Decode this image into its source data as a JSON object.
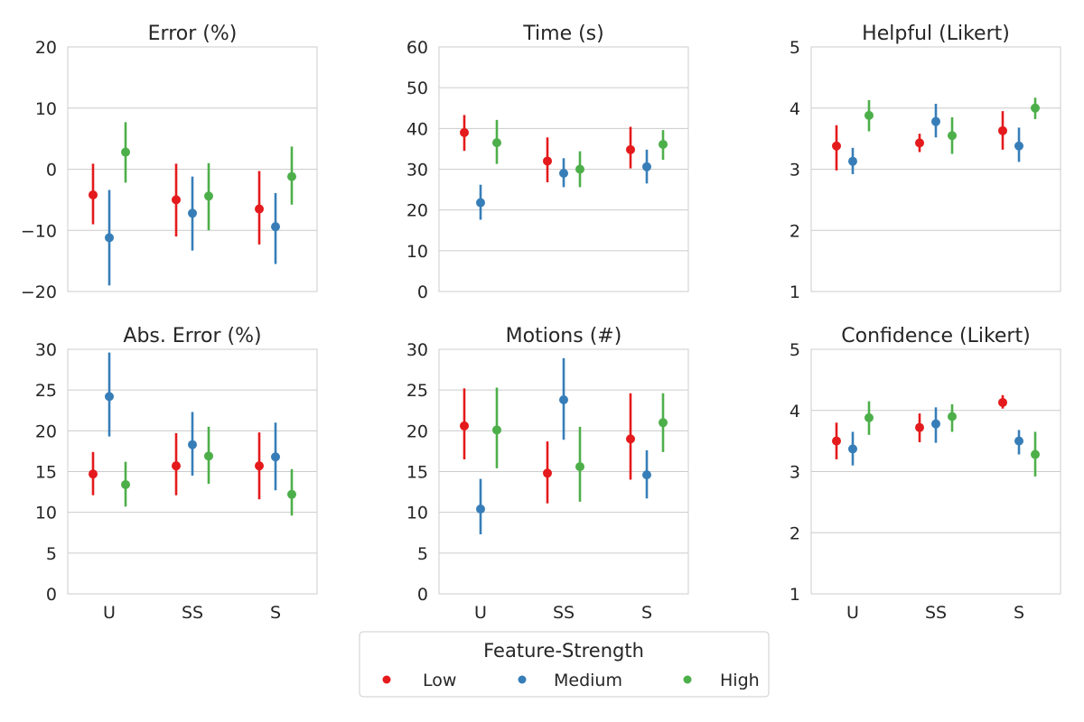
{
  "chart_data": [
    {
      "type": "pointplot",
      "title": "Error (%)",
      "categories": [
        "U",
        "SS",
        "S"
      ],
      "ylim": [
        -20,
        20
      ],
      "yticks": [
        -20,
        -10,
        0,
        10,
        20
      ],
      "ytick_labels": [
        "−20",
        "−10",
        "0",
        "10",
        "20"
      ],
      "show_xticks": false,
      "series": [
        {
          "name": "Low",
          "values": [
            -4.2,
            -5.0,
            -6.5
          ],
          "ci_low": [
            -9.0,
            -11.0,
            -12.3
          ],
          "ci_high": [
            0.9,
            0.9,
            -0.3
          ]
        },
        {
          "name": "Medium",
          "values": [
            -11.2,
            -7.2,
            -9.4
          ],
          "ci_low": [
            -19.0,
            -13.3,
            -15.5
          ],
          "ci_high": [
            -3.4,
            -1.2,
            -3.9
          ]
        },
        {
          "name": "High",
          "values": [
            2.8,
            -4.4,
            -1.2
          ],
          "ci_low": [
            -2.2,
            -10.0,
            -5.8
          ],
          "ci_high": [
            7.7,
            1.0,
            3.7
          ]
        }
      ]
    },
    {
      "type": "pointplot",
      "title": "Time (s)",
      "categories": [
        "U",
        "SS",
        "S"
      ],
      "ylim": [
        0,
        60
      ],
      "yticks": [
        0,
        10,
        20,
        30,
        40,
        50,
        60
      ],
      "ytick_labels": [
        "0",
        "10",
        "20",
        "30",
        "40",
        "50",
        "60"
      ],
      "show_xticks": false,
      "series": [
        {
          "name": "Low",
          "values": [
            39.0,
            32.0,
            34.8
          ],
          "ci_low": [
            34.5,
            26.8,
            30.2
          ],
          "ci_high": [
            43.3,
            37.8,
            40.4
          ]
        },
        {
          "name": "Medium",
          "values": [
            21.8,
            29.0,
            30.6
          ],
          "ci_low": [
            17.6,
            25.6,
            26.5
          ],
          "ci_high": [
            26.2,
            32.7,
            34.8
          ]
        },
        {
          "name": "High",
          "values": [
            36.5,
            30.0,
            36.1
          ],
          "ci_low": [
            31.3,
            25.6,
            32.3
          ],
          "ci_high": [
            42.1,
            34.4,
            39.6
          ]
        }
      ]
    },
    {
      "type": "pointplot",
      "title": "Helpful (Likert)",
      "categories": [
        "U",
        "SS",
        "S"
      ],
      "ylim": [
        1,
        5
      ],
      "yticks": [
        1,
        2,
        3,
        4,
        5
      ],
      "ytick_labels": [
        "1",
        "2",
        "3",
        "4",
        "5"
      ],
      "show_xticks": false,
      "series": [
        {
          "name": "Low",
          "values": [
            3.38,
            3.43,
            3.63
          ],
          "ci_low": [
            2.98,
            3.28,
            3.32
          ],
          "ci_high": [
            3.72,
            3.58,
            3.95
          ]
        },
        {
          "name": "Medium",
          "values": [
            3.13,
            3.78,
            3.38
          ],
          "ci_low": [
            2.92,
            3.52,
            3.12
          ],
          "ci_high": [
            3.35,
            4.07,
            3.68
          ]
        },
        {
          "name": "High",
          "values": [
            3.88,
            3.55,
            4.0
          ],
          "ci_low": [
            3.62,
            3.25,
            3.82
          ],
          "ci_high": [
            4.13,
            3.85,
            4.17
          ]
        }
      ]
    },
    {
      "type": "pointplot",
      "title": "Abs. Error (%)",
      "categories": [
        "U",
        "SS",
        "S"
      ],
      "ylim": [
        0,
        30
      ],
      "yticks": [
        0,
        5,
        10,
        15,
        20,
        25,
        30
      ],
      "ytick_labels": [
        "0",
        "5",
        "10",
        "15",
        "20",
        "25",
        "30"
      ],
      "show_xticks": true,
      "series": [
        {
          "name": "Low",
          "values": [
            14.7,
            15.7,
            15.7
          ],
          "ci_low": [
            12.1,
            12.1,
            11.6
          ],
          "ci_high": [
            17.4,
            19.7,
            19.8
          ]
        },
        {
          "name": "Medium",
          "values": [
            24.2,
            18.3,
            16.8
          ],
          "ci_low": [
            19.3,
            14.5,
            12.7
          ],
          "ci_high": [
            29.6,
            22.3,
            21.0
          ]
        },
        {
          "name": "High",
          "values": [
            13.4,
            16.9,
            12.2
          ],
          "ci_low": [
            10.7,
            13.5,
            9.6
          ],
          "ci_high": [
            16.2,
            20.5,
            15.3
          ]
        }
      ]
    },
    {
      "type": "pointplot",
      "title": "Motions (#)",
      "categories": [
        "U",
        "SS",
        "S"
      ],
      "ylim": [
        0,
        30
      ],
      "yticks": [
        0,
        5,
        10,
        15,
        20,
        25,
        30
      ],
      "ytick_labels": [
        "0",
        "5",
        "10",
        "15",
        "20",
        "25",
        "30"
      ],
      "show_xticks": true,
      "series": [
        {
          "name": "Low",
          "values": [
            20.6,
            14.8,
            19.0
          ],
          "ci_low": [
            16.5,
            11.1,
            14.0
          ],
          "ci_high": [
            25.2,
            18.7,
            24.6
          ]
        },
        {
          "name": "Medium",
          "values": [
            10.4,
            23.8,
            14.6
          ],
          "ci_low": [
            7.3,
            18.9,
            11.7
          ],
          "ci_high": [
            14.1,
            28.9,
            17.6
          ]
        },
        {
          "name": "High",
          "values": [
            20.1,
            15.6,
            21.0
          ],
          "ci_low": [
            15.4,
            11.3,
            17.4
          ],
          "ci_high": [
            25.3,
            20.5,
            24.6
          ]
        }
      ]
    },
    {
      "type": "pointplot",
      "title": "Confidence (Likert)",
      "categories": [
        "U",
        "SS",
        "S"
      ],
      "ylim": [
        1,
        5
      ],
      "yticks": [
        1,
        2,
        3,
        4,
        5
      ],
      "ytick_labels": [
        "1",
        "2",
        "3",
        "4",
        "5"
      ],
      "show_xticks": true,
      "series": [
        {
          "name": "Low",
          "values": [
            3.5,
            3.72,
            4.13
          ],
          "ci_low": [
            3.2,
            3.48,
            4.03
          ],
          "ci_high": [
            3.8,
            3.95,
            4.25
          ]
        },
        {
          "name": "Medium",
          "values": [
            3.37,
            3.78,
            3.5
          ],
          "ci_low": [
            3.1,
            3.47,
            3.28
          ],
          "ci_high": [
            3.65,
            4.05,
            3.68
          ]
        },
        {
          "name": "High",
          "values": [
            3.88,
            3.9,
            3.28
          ],
          "ci_low": [
            3.6,
            3.65,
            2.92
          ],
          "ci_high": [
            4.15,
            4.1,
            3.65
          ]
        }
      ]
    }
  ],
  "legend": {
    "title": "Feature-Strength",
    "position": "bottom-center",
    "items": [
      "Low",
      "Medium",
      "High"
    ]
  },
  "colors": {
    "Low": "#e41a1c",
    "Medium": "#377eb8",
    "High": "#4daf4a",
    "grid": "#cccccc",
    "spine": "#cccccc",
    "text": "#262626"
  }
}
